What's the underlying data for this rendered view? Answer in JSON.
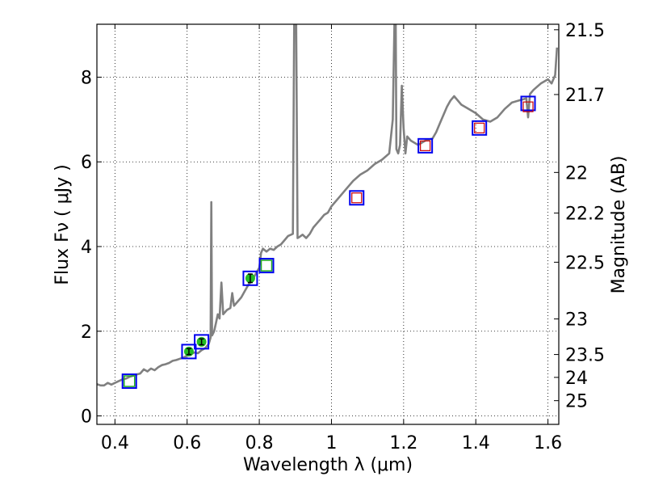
{
  "chart_data": {
    "type": "line",
    "xlabel": "Wavelength  λ (μm)",
    "ylabel": "Flux  Fν  ( μJy )",
    "y2label": "Magnitude (AB)",
    "xlim": [
      0.35,
      1.63
    ],
    "ylim": [
      -0.2,
      9.25
    ],
    "grid": true,
    "x_ticks": [
      0.4,
      0.6,
      0.8,
      1.0,
      1.2,
      1.4,
      1.6
    ],
    "x_tick_labels": [
      "0.4",
      "0.6",
      "0.8",
      "1",
      "1.2",
      "1.4",
      "1.6"
    ],
    "y_ticks": [
      0,
      2,
      4,
      6,
      8
    ],
    "y_tick_labels": [
      "0",
      "2",
      "4",
      "6",
      "8"
    ],
    "mag_ticks": [
      {
        "mag": "21.5",
        "flux": 9.12
      },
      {
        "mag": "21.7",
        "flux": 7.59
      },
      {
        "mag": "22",
        "flux": 5.75
      },
      {
        "mag": "22.2",
        "flux": 4.79
      },
      {
        "mag": "22.5",
        "flux": 3.63
      },
      {
        "mag": "23",
        "flux": 2.29
      },
      {
        "mag": "23.5",
        "flux": 1.45
      },
      {
        "mag": "24",
        "flux": 0.91
      },
      {
        "mag": "25",
        "flux": 0.36
      }
    ],
    "colors": {
      "spectrum": "#808080",
      "blue_box": "#0000ee",
      "red_box": "#cc0000",
      "green_box": "#22aa22",
      "green_point": "#22bb22"
    },
    "series": [
      {
        "name": "model-spectrum",
        "style": "line",
        "points": [
          [
            0.35,
            0.75
          ],
          [
            0.36,
            0.72
          ],
          [
            0.37,
            0.72
          ],
          [
            0.38,
            0.78
          ],
          [
            0.39,
            0.74
          ],
          [
            0.4,
            0.78
          ],
          [
            0.41,
            0.82
          ],
          [
            0.42,
            0.86
          ],
          [
            0.43,
            0.88
          ],
          [
            0.44,
            0.92
          ],
          [
            0.45,
            0.95
          ],
          [
            0.46,
            0.98
          ],
          [
            0.47,
            1.0
          ],
          [
            0.48,
            1.1
          ],
          [
            0.49,
            1.05
          ],
          [
            0.5,
            1.12
          ],
          [
            0.51,
            1.08
          ],
          [
            0.52,
            1.15
          ],
          [
            0.53,
            1.2
          ],
          [
            0.54,
            1.22
          ],
          [
            0.55,
            1.25
          ],
          [
            0.56,
            1.3
          ],
          [
            0.57,
            1.32
          ],
          [
            0.58,
            1.35
          ],
          [
            0.59,
            1.38
          ],
          [
            0.6,
            1.42
          ],
          [
            0.61,
            1.45
          ],
          [
            0.62,
            1.5
          ],
          [
            0.63,
            1.48
          ],
          [
            0.64,
            1.55
          ],
          [
            0.65,
            1.6
          ],
          [
            0.66,
            1.7
          ],
          [
            0.665,
            1.85
          ],
          [
            0.667,
            5.05
          ],
          [
            0.669,
            1.9
          ],
          [
            0.675,
            2.0
          ],
          [
            0.68,
            2.2
          ],
          [
            0.685,
            2.4
          ],
          [
            0.69,
            2.3
          ],
          [
            0.695,
            3.15
          ],
          [
            0.7,
            2.4
          ],
          [
            0.71,
            2.5
          ],
          [
            0.72,
            2.55
          ],
          [
            0.725,
            2.9
          ],
          [
            0.73,
            2.6
          ],
          [
            0.74,
            2.7
          ],
          [
            0.75,
            2.8
          ],
          [
            0.76,
            2.95
          ],
          [
            0.77,
            3.1
          ],
          [
            0.78,
            3.2
          ],
          [
            0.79,
            3.35
          ],
          [
            0.8,
            3.5
          ],
          [
            0.805,
            3.85
          ],
          [
            0.81,
            3.95
          ],
          [
            0.82,
            3.88
          ],
          [
            0.83,
            3.95
          ],
          [
            0.84,
            3.92
          ],
          [
            0.85,
            4.0
          ],
          [
            0.86,
            4.05
          ],
          [
            0.87,
            4.15
          ],
          [
            0.88,
            4.25
          ],
          [
            0.893,
            4.3
          ],
          [
            0.897,
            9.5
          ],
          [
            0.902,
            9.5
          ],
          [
            0.906,
            4.2
          ],
          [
            0.91,
            4.22
          ],
          [
            0.92,
            4.28
          ],
          [
            0.93,
            4.2
          ],
          [
            0.94,
            4.3
          ],
          [
            0.95,
            4.45
          ],
          [
            0.96,
            4.55
          ],
          [
            0.97,
            4.65
          ],
          [
            0.98,
            4.75
          ],
          [
            0.99,
            4.8
          ],
          [
            1.0,
            4.95
          ],
          [
            1.02,
            5.15
          ],
          [
            1.04,
            5.35
          ],
          [
            1.06,
            5.55
          ],
          [
            1.08,
            5.7
          ],
          [
            1.1,
            5.8
          ],
          [
            1.12,
            5.95
          ],
          [
            1.14,
            6.05
          ],
          [
            1.16,
            6.2
          ],
          [
            1.17,
            7.0
          ],
          [
            1.175,
            9.5
          ],
          [
            1.178,
            9.5
          ],
          [
            1.18,
            6.3
          ],
          [
            1.185,
            6.2
          ],
          [
            1.19,
            6.4
          ],
          [
            1.195,
            7.8
          ],
          [
            1.2,
            6.8
          ],
          [
            1.205,
            6.2
          ],
          [
            1.21,
            6.6
          ],
          [
            1.22,
            6.5
          ],
          [
            1.24,
            6.4
          ],
          [
            1.26,
            6.5
          ],
          [
            1.28,
            6.55
          ],
          [
            1.29,
            6.7
          ],
          [
            1.3,
            6.9
          ],
          [
            1.31,
            7.1
          ],
          [
            1.32,
            7.3
          ],
          [
            1.33,
            7.45
          ],
          [
            1.34,
            7.55
          ],
          [
            1.36,
            7.35
          ],
          [
            1.38,
            7.25
          ],
          [
            1.4,
            7.15
          ],
          [
            1.42,
            7.0
          ],
          [
            1.44,
            6.95
          ],
          [
            1.46,
            7.05
          ],
          [
            1.48,
            7.25
          ],
          [
            1.5,
            7.4
          ],
          [
            1.52,
            7.45
          ],
          [
            1.54,
            7.5
          ],
          [
            1.545,
            7.05
          ],
          [
            1.55,
            7.6
          ],
          [
            1.56,
            7.7
          ],
          [
            1.58,
            7.85
          ],
          [
            1.6,
            7.95
          ],
          [
            1.61,
            7.85
          ],
          [
            1.62,
            8.05
          ],
          [
            1.625,
            8.7
          ]
        ]
      },
      {
        "name": "model-photometry-blue",
        "style": "open-square",
        "points": [
          [
            0.44,
            0.82
          ],
          [
            0.605,
            1.52
          ],
          [
            0.64,
            1.75
          ],
          [
            0.775,
            3.25
          ],
          [
            0.82,
            3.55
          ],
          [
            1.07,
            5.15
          ],
          [
            1.26,
            6.38
          ],
          [
            1.41,
            6.8
          ],
          [
            1.545,
            7.38
          ]
        ]
      },
      {
        "name": "observed-red",
        "style": "open-square",
        "points": [
          [
            1.07,
            5.15
          ],
          [
            1.26,
            6.38
          ],
          [
            1.41,
            6.8
          ],
          [
            1.545,
            7.3
          ]
        ]
      },
      {
        "name": "observed-green-box",
        "style": "open-square",
        "points": [
          [
            0.44,
            0.82
          ],
          [
            0.82,
            3.55
          ]
        ]
      },
      {
        "name": "observed-green-points",
        "style": "filled-circle-errorbar",
        "points": [
          [
            0.605,
            1.52,
            0.07
          ],
          [
            0.64,
            1.75,
            0.07
          ],
          [
            0.775,
            3.25,
            0.1
          ]
        ]
      }
    ]
  }
}
